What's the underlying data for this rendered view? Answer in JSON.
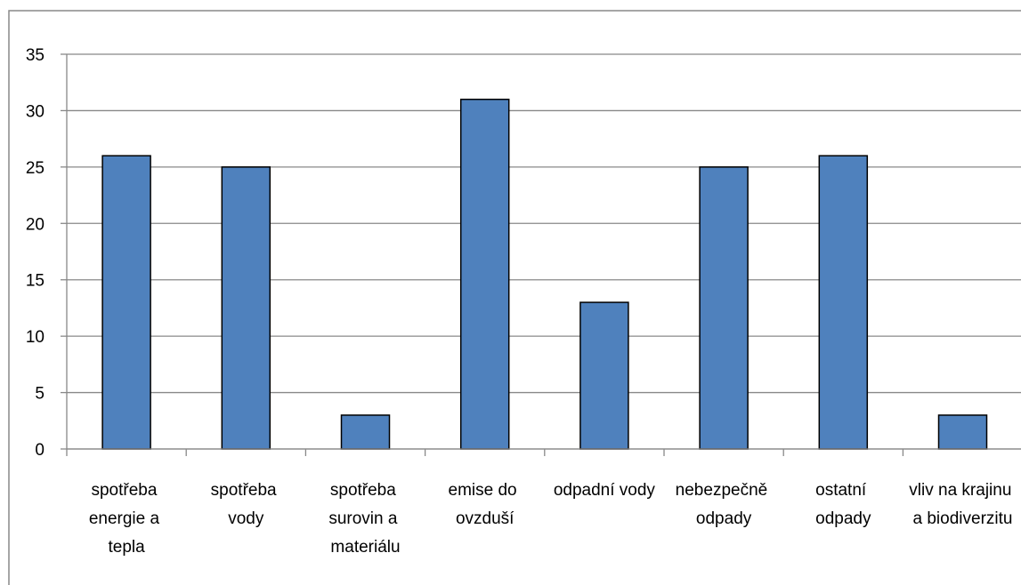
{
  "chart_data": {
    "type": "bar",
    "categories": [
      "spotřeba energie a tepla",
      "spotřeba vody",
      "spotřeba surovin a materiálu",
      "emise do ovzduší",
      "odpadní vody",
      "nebezpečně odpady",
      "ostatní odpady",
      "vliv na krajinu a biodiverzitu"
    ],
    "values": [
      26,
      25,
      3,
      31,
      13,
      25,
      26,
      3
    ],
    "color": "#4f81bd",
    "ylim": [
      0,
      35
    ],
    "yticks": [
      0,
      5,
      10,
      15,
      20,
      25,
      30,
      35
    ],
    "grid": true
  }
}
